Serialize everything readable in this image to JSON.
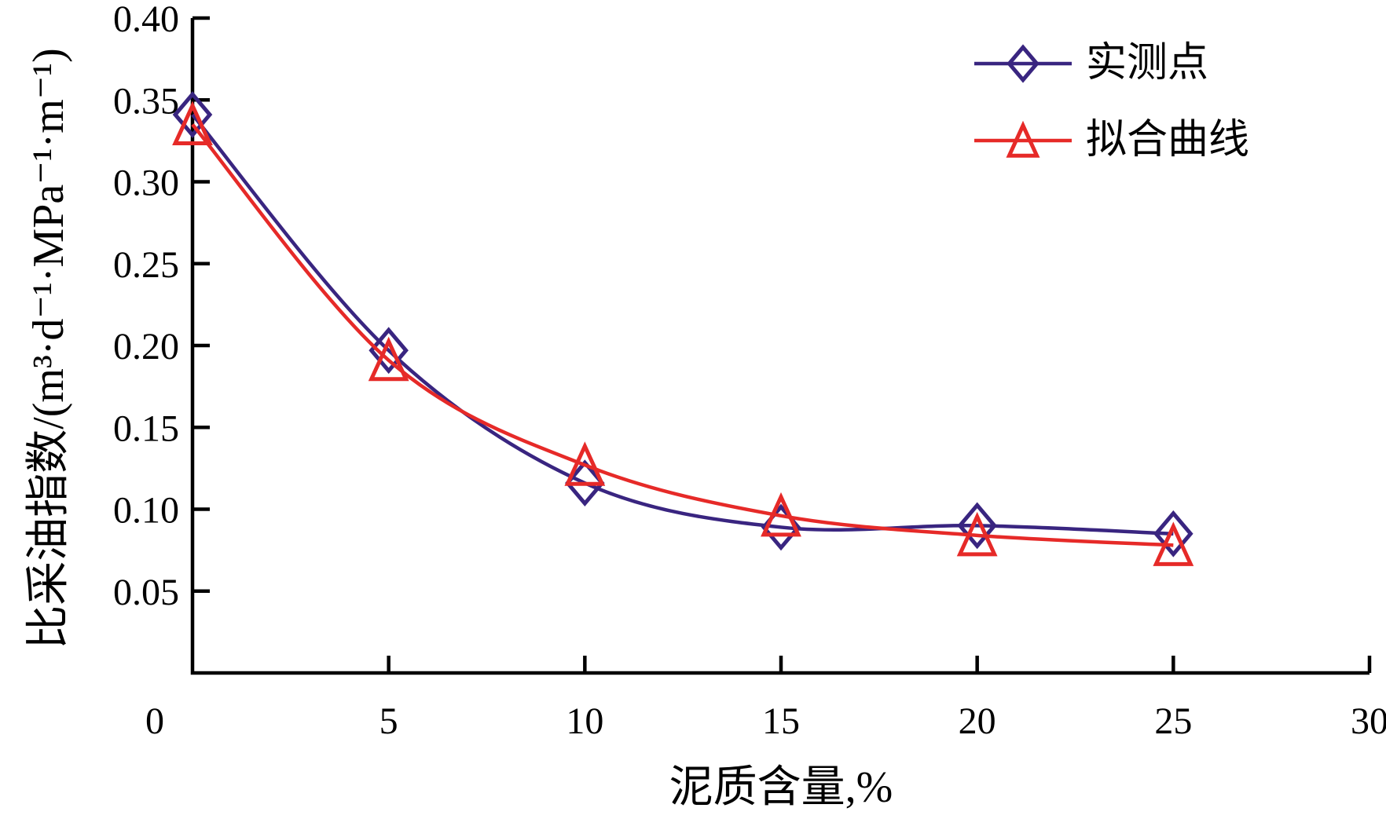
{
  "chart_data": {
    "type": "line",
    "title": "",
    "xlabel": "泥质含量,%",
    "ylabel": "比采油指数/(m³·d⁻¹·MPa⁻¹·m⁻¹)",
    "x": [
      0,
      5,
      10,
      15,
      20,
      25
    ],
    "series": [
      {
        "name": "实测点",
        "marker": "diamond",
        "color": "#392580",
        "values": [
          0.341,
          0.197,
          0.116,
          0.089,
          0.09,
          0.085
        ]
      },
      {
        "name": "拟合曲线",
        "marker": "triangle",
        "color": "#E62A28",
        "values": [
          0.335,
          0.191,
          0.127,
          0.096,
          0.084,
          0.078
        ]
      }
    ],
    "xlim": [
      0,
      30
    ],
    "ylim": [
      0,
      0.4
    ],
    "x_ticks": [
      0,
      5,
      10,
      15,
      20,
      25,
      30
    ],
    "x_tick_labels": [
      "0",
      "5",
      "10",
      "15",
      "20",
      "25",
      "30"
    ],
    "y_ticks": [
      0.05,
      0.1,
      0.15,
      0.2,
      0.25,
      0.3,
      0.35,
      0.4
    ],
    "y_tick_labels": [
      "0.05",
      "0.10",
      "0.15",
      "0.20",
      "0.25",
      "0.30",
      "0.35",
      "0.40"
    ],
    "legend_position": "top-right",
    "grid": false,
    "axis_color": "#000000",
    "background_color": "#ffffff"
  }
}
